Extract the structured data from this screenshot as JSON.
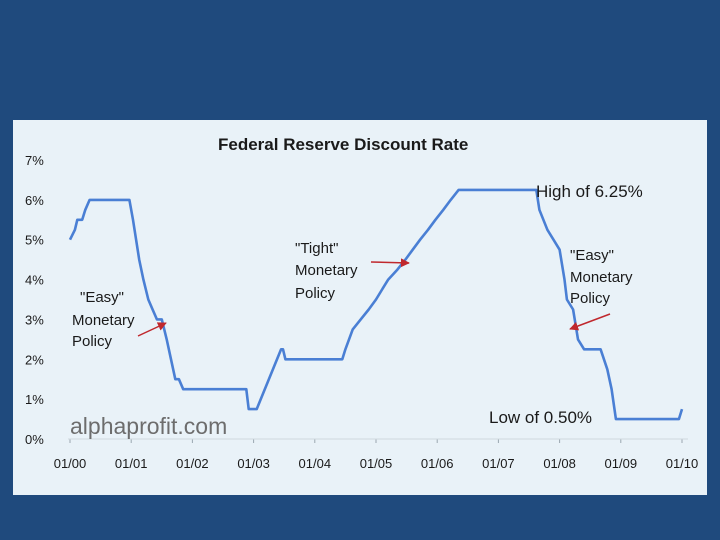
{
  "chart_data": {
    "type": "line",
    "title": "Federal Reserve Discount Rate",
    "xlabel": "",
    "ylabel": "",
    "x_ticks": [
      "01/00",
      "01/01",
      "01/02",
      "01/03",
      "01/04",
      "01/05",
      "01/06",
      "01/07",
      "01/08",
      "01/09",
      "01/10"
    ],
    "y_ticks": [
      "0%",
      "1%",
      "2%",
      "3%",
      "4%",
      "5%",
      "6%",
      "7%"
    ],
    "xlim": [
      2000.0,
      2010.0
    ],
    "ylim": [
      0,
      7
    ],
    "grid": false,
    "series": [
      {
        "name": "",
        "color": "#4a7fd4",
        "x": [
          2000.0,
          2000.08,
          2000.12,
          2000.2,
          2000.25,
          2000.32,
          2000.38,
          2000.97,
          2001.03,
          2001.08,
          2001.13,
          2001.2,
          2001.28,
          2001.35,
          2001.42,
          2001.5,
          2001.58,
          2001.65,
          2001.72,
          2001.78,
          2001.85,
          2001.92,
          2001.97,
          2002.88,
          2002.92,
          2003.05,
          2003.45,
          2003.48,
          2003.52,
          2004.45,
          2004.5,
          2004.62,
          2004.75,
          2004.88,
          2005.0,
          2005.1,
          2005.2,
          2005.35,
          2005.48,
          2005.6,
          2005.72,
          2005.85,
          2005.97,
          2006.1,
          2006.22,
          2006.35,
          2006.48,
          2007.62,
          2007.67,
          2007.8,
          2007.9,
          2008.0,
          2008.08,
          2008.12,
          2008.22,
          2008.3,
          2008.4,
          2008.67,
          2008.78,
          2008.85,
          2008.92,
          2009.95,
          2010.0
        ],
        "y": [
          5.0,
          5.25,
          5.5,
          5.5,
          5.75,
          6.0,
          6.0,
          6.0,
          5.5,
          5.0,
          4.5,
          4.0,
          3.5,
          3.25,
          3.0,
          3.0,
          2.5,
          2.0,
          1.5,
          1.5,
          1.25,
          1.25,
          1.25,
          1.25,
          0.75,
          0.75,
          2.25,
          2.25,
          2.0,
          2.0,
          2.25,
          2.75,
          3.0,
          3.25,
          3.5,
          3.75,
          4.0,
          4.25,
          4.5,
          4.75,
          5.0,
          5.25,
          5.5,
          5.75,
          6.0,
          6.25,
          6.25,
          6.25,
          5.75,
          5.25,
          5.0,
          4.75,
          4.0,
          3.5,
          3.25,
          2.5,
          2.25,
          2.25,
          1.75,
          1.25,
          0.5,
          0.5,
          0.75
        ]
      }
    ],
    "annotations": [
      {
        "lines": [
          "\"Easy\"",
          "Monetary",
          "Policy"
        ]
      },
      {
        "lines": [
          "\"Tight\"",
          "Monetary",
          "Policy"
        ]
      },
      {
        "lines": [
          "\"Easy\"",
          "Monetary",
          "Policy"
        ]
      },
      {
        "lines": [
          "High of 6.25%"
        ]
      },
      {
        "lines": [
          "Low of 0.50%"
        ]
      }
    ],
    "watermark": "alphaprofit.com"
  },
  "colors": {
    "background": "#1f4a7d",
    "panel": "#e9f2f8",
    "line": "#4a7fd4",
    "arrow": "#c0282d"
  }
}
